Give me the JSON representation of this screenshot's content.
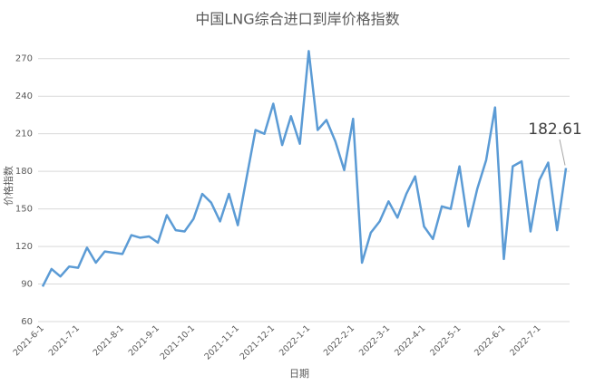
{
  "chart_data": {
    "type": "line",
    "title": "中国LNG综合进口到岸价格指数",
    "xlabel": "日期",
    "ylabel": "价格指数",
    "categories": [
      "2021-6-1",
      null,
      null,
      null,
      "2021-7-1",
      null,
      null,
      null,
      null,
      "2021-8-1",
      null,
      null,
      null,
      "2021-9-1",
      null,
      null,
      null,
      "2021-10-1",
      null,
      null,
      null,
      null,
      "2021-11-1",
      null,
      null,
      null,
      "2021-12-1",
      null,
      null,
      null,
      "2022-1-1",
      null,
      null,
      null,
      null,
      "2022-2-1",
      null,
      null,
      null,
      "2022-3-1",
      null,
      null,
      null,
      "2022-4-1",
      null,
      null,
      null,
      "2022-5-1",
      null,
      null,
      null,
      null,
      "2022-6-1",
      null,
      null,
      null,
      "2022-7-1",
      null,
      null,
      null
    ],
    "series": [
      {
        "name": "价格指数",
        "color": "#5b9bd5",
        "values": [
          88,
          102,
          96,
          104,
          103,
          119,
          107,
          116,
          115,
          114,
          129,
          127,
          128,
          123,
          145,
          133,
          132,
          142,
          162,
          155,
          140,
          162,
          137,
          175,
          213,
          210,
          234,
          201,
          224,
          202,
          276,
          213,
          221,
          204,
          181,
          222,
          107,
          131,
          140,
          156,
          143,
          162,
          176,
          136,
          126,
          152,
          150,
          184,
          136,
          166,
          189,
          231,
          110,
          184,
          188,
          132,
          173,
          187,
          133,
          182.61
        ]
      }
    ],
    "ylim": [
      60,
      285
    ],
    "yticks": [
      60,
      90,
      120,
      150,
      180,
      210,
      240,
      270
    ],
    "grid": true
  }
}
